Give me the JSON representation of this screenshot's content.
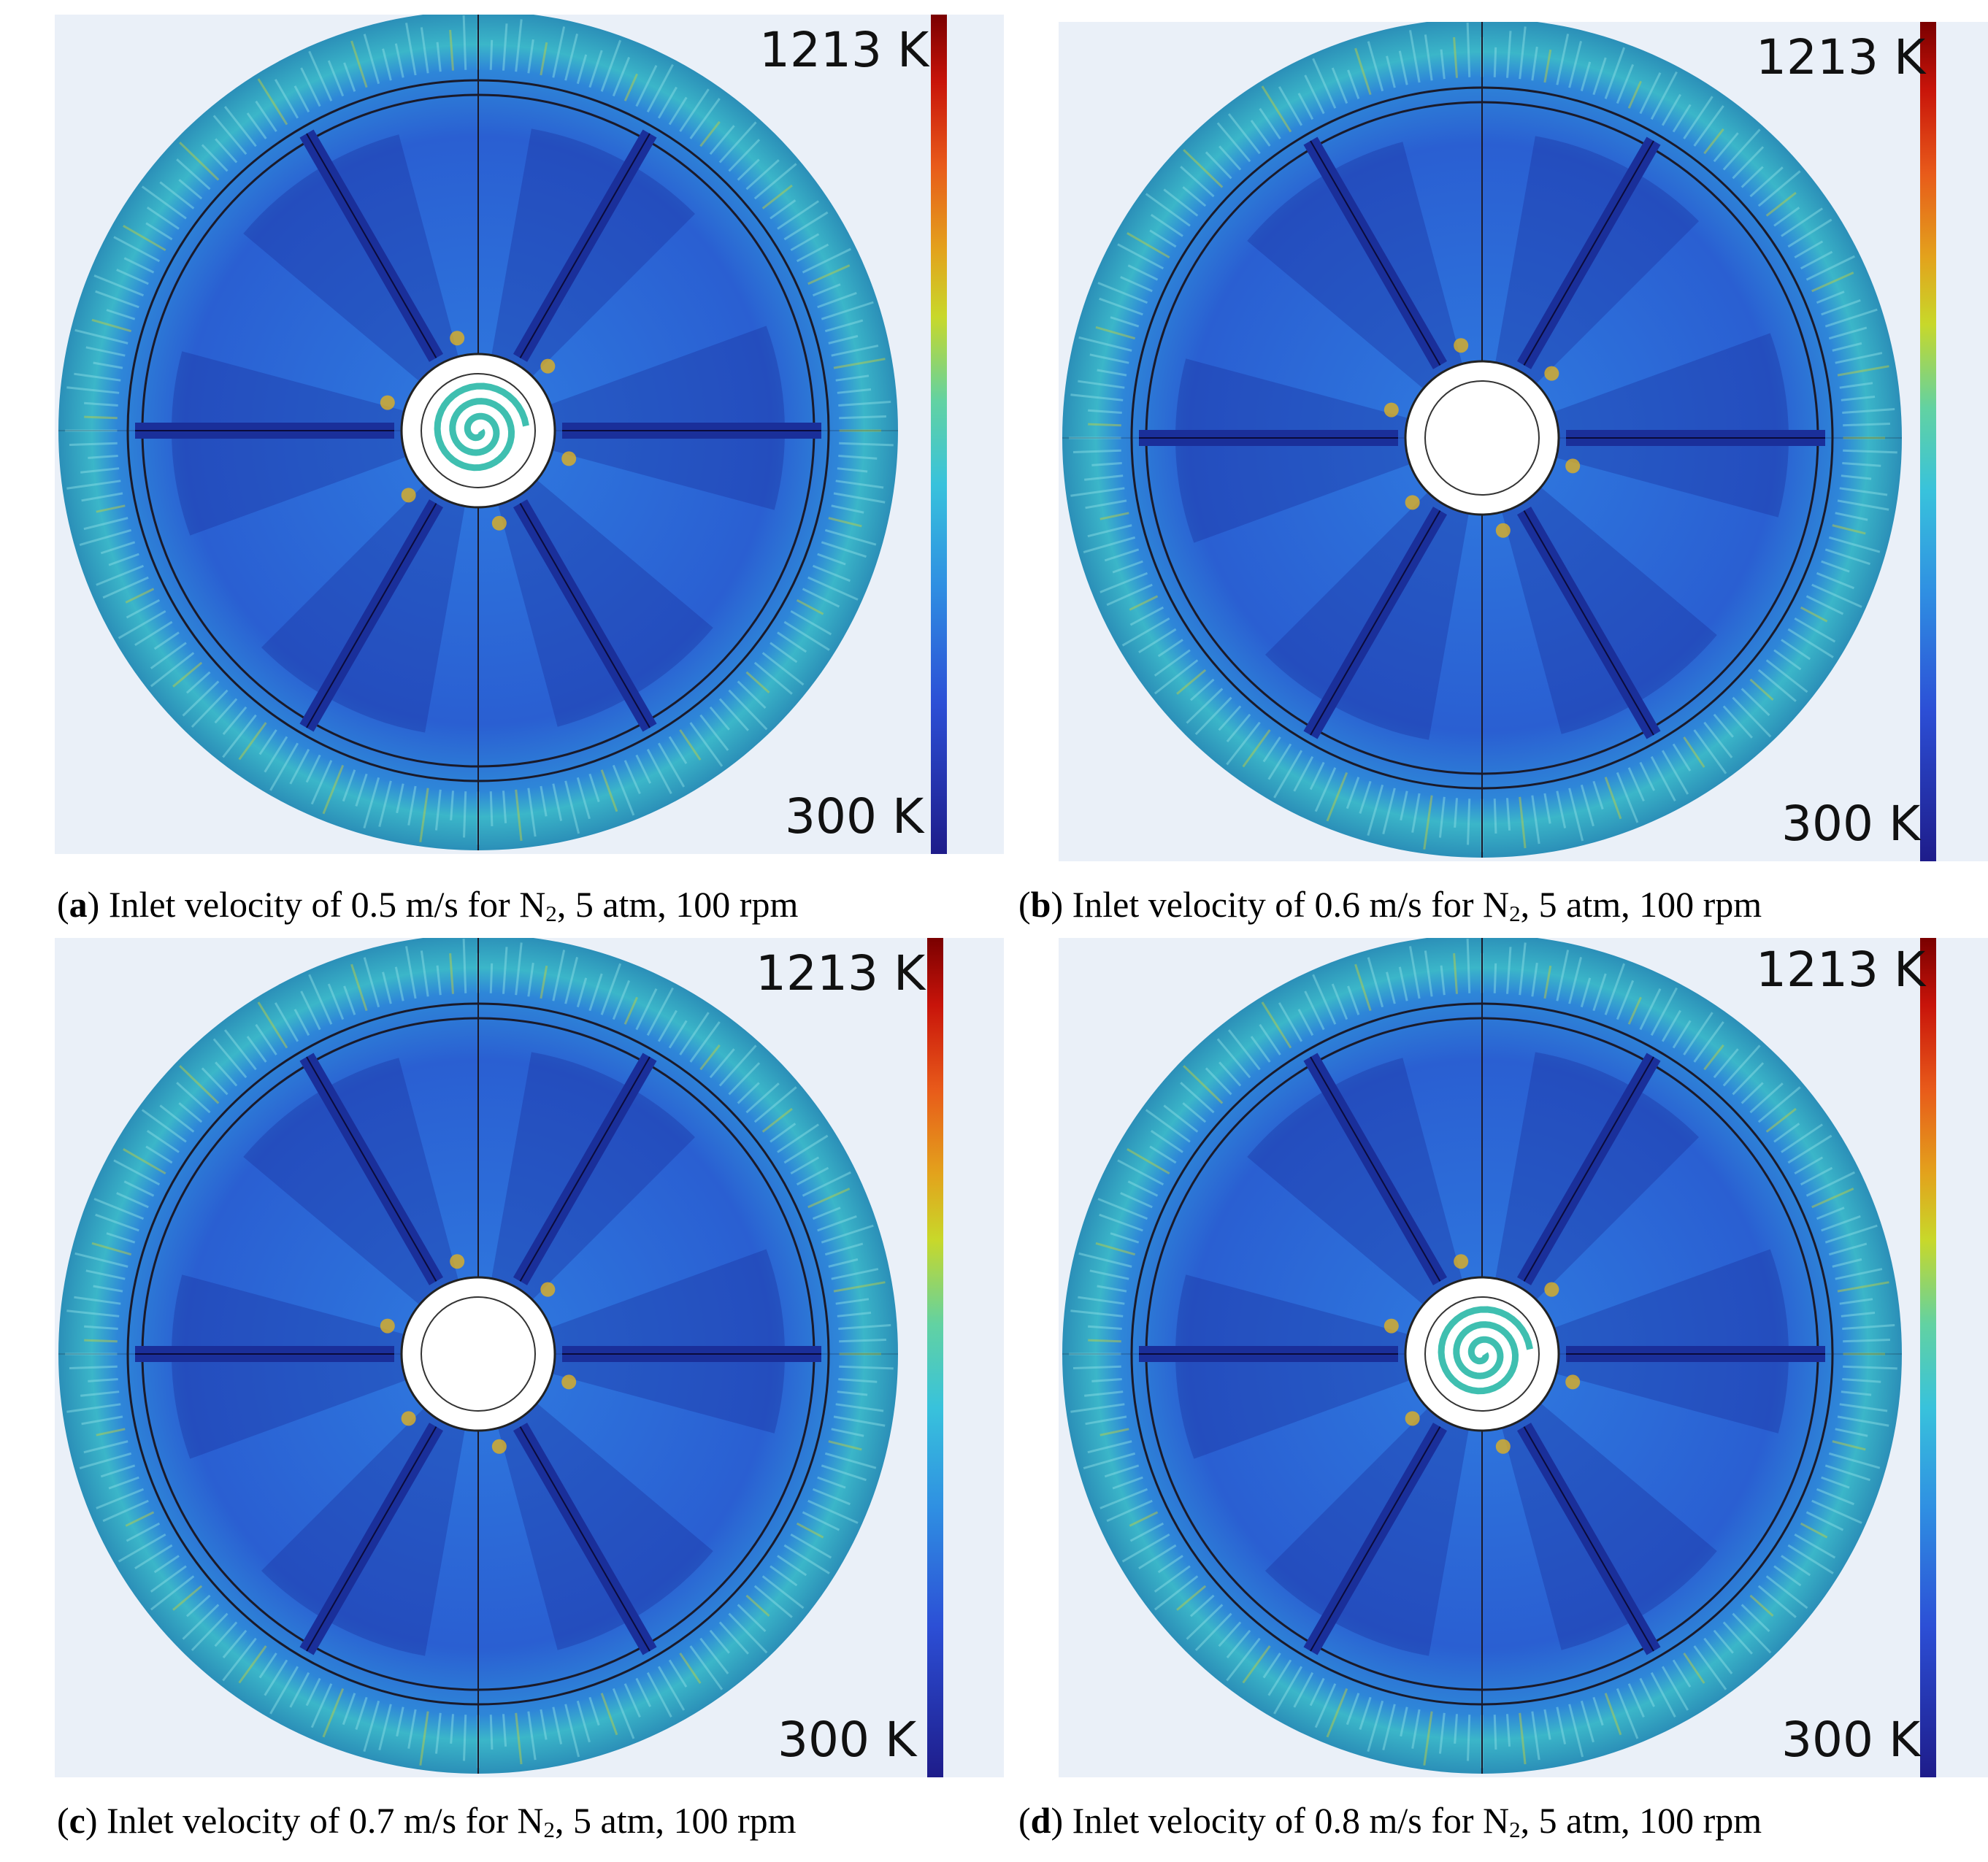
{
  "colorbar": {
    "max_label": "1213 K",
    "min_label": "300 K"
  },
  "panels": [
    {
      "id": "a",
      "velocity": "0.5 m/s",
      "gas": "N",
      "gas_subscript": "2",
      "pressure": "5 atm",
      "speed": "100 rpm",
      "center": "spiral",
      "caption_prefix": "Inlet velocity of 0.5 m/s for "
    },
    {
      "id": "b",
      "velocity": "0.6 m/s",
      "gas": "N",
      "gas_subscript": "2",
      "pressure": "5 atm",
      "speed": "100 rpm",
      "center": "plain",
      "caption_prefix": "Inlet velocity of 0.6 m/s for "
    },
    {
      "id": "c",
      "velocity": "0.7 m/s",
      "gas": "N",
      "gas_subscript": "2",
      "pressure": "5 atm",
      "speed": "100 rpm",
      "center": "plain",
      "caption_prefix": "Inlet velocity of 0.7 m/s for "
    },
    {
      "id": "d",
      "velocity": "0.8 m/s",
      "gas": "N",
      "gas_subscript": "2",
      "pressure": "5 atm",
      "speed": "100 rpm",
      "center": "spiral",
      "caption_prefix": "Inlet velocity of 0.8 m/s for "
    }
  ],
  "caption_suffix": ", 5 atm, 100 rpm",
  "colors": {
    "outer_ring": "#3bb6c9",
    "mid_blue": "#2c6fd8",
    "dark_blue": "#1a2f9a",
    "hot": "#e0b020"
  }
}
